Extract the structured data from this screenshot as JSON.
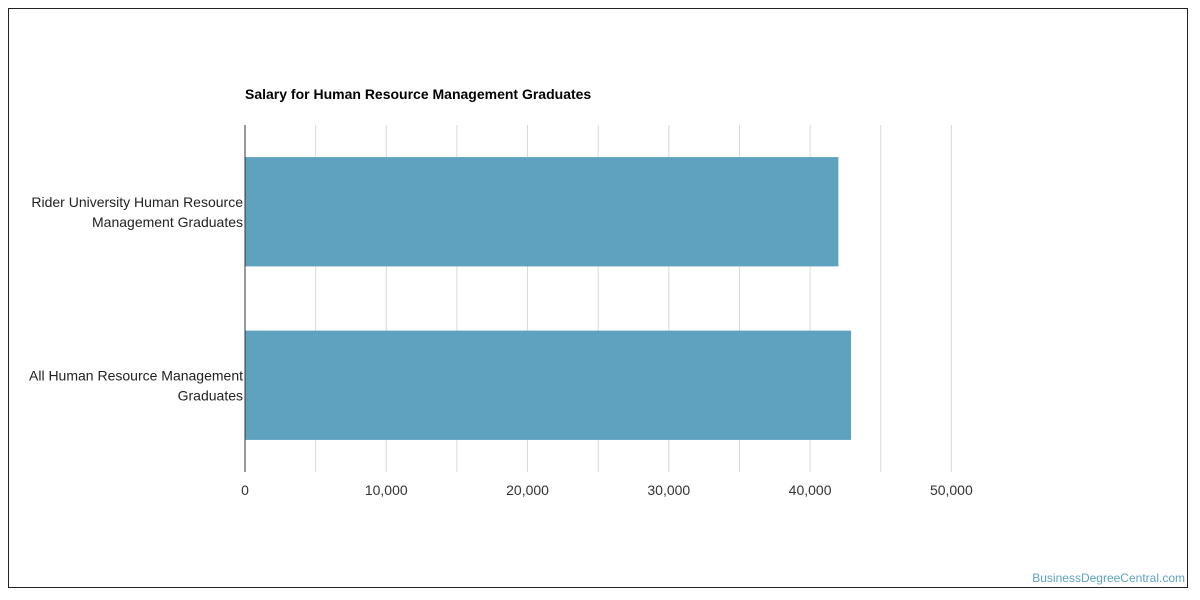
{
  "chart_data": {
    "type": "bar",
    "orientation": "horizontal",
    "title": "Salary for Human Resource Management Graduates",
    "categories": [
      [
        "Rider University Human Resource",
        "Management Graduates"
      ],
      [
        "All Human Resource Management",
        "Graduates"
      ]
    ],
    "values": [
      42000,
      42900
    ],
    "xlim": [
      0,
      55000
    ],
    "xticks": [
      0,
      10000,
      20000,
      30000,
      40000,
      50000
    ],
    "xtick_labels": [
      "0",
      "10,000",
      "20,000",
      "30,000",
      "40,000",
      "50,000"
    ],
    "minor_gridlines": [
      5000,
      15000,
      25000,
      35000,
      45000
    ],
    "grid": true,
    "bar_color": "#5ea2bf",
    "grid_color": "#d9d9d9"
  },
  "watermark": {
    "text": "BusinessDegreeCentral.com",
    "color": "#5ea2bf"
  }
}
